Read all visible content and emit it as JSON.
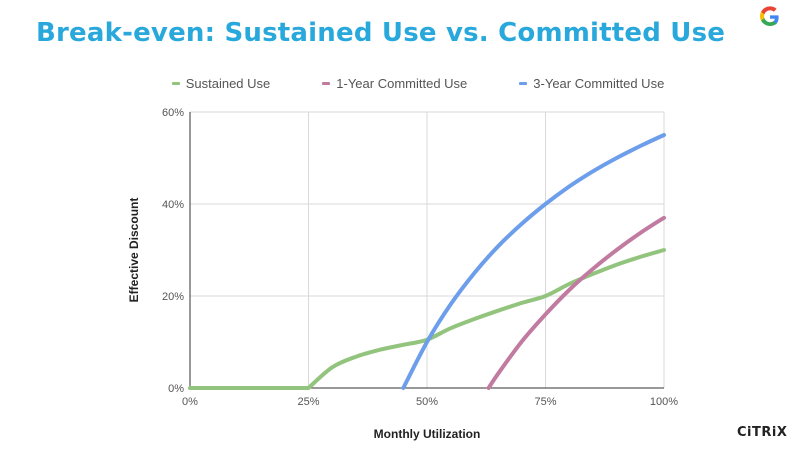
{
  "page": {
    "title": "Break-even: Sustained Use vs. Committed Use",
    "brand_logo": "google-g-logo",
    "company_logo": "CiTRiX"
  },
  "colors": {
    "title": "#29a8dc",
    "sustained": "#93c47d",
    "one_year": "#c27ba0",
    "three_year": "#6d9eeb",
    "grid": "#d9d9d9"
  },
  "chart_data": {
    "type": "line",
    "title": "",
    "xlabel": "Monthly Utilization",
    "ylabel": "Effective Discount",
    "xlim": [
      0,
      100
    ],
    "ylim": [
      0,
      60
    ],
    "x_ticks": [
      "0%",
      "25%",
      "50%",
      "75%",
      "100%"
    ],
    "y_ticks": [
      "0%",
      "20%",
      "40%",
      "60%"
    ],
    "grid": true,
    "legend_position": "top",
    "series": [
      {
        "name": "Sustained Use",
        "color": "#93c47d",
        "x": [
          0,
          25,
          30,
          35,
          40,
          45,
          50,
          55,
          60,
          65,
          70,
          75,
          80,
          85,
          90,
          95,
          100
        ],
        "y": [
          0,
          0,
          4.5,
          6.8,
          8.3,
          9.4,
          10.5,
          13,
          15,
          16.8,
          18.5,
          20,
          22.6,
          24.8,
          26.8,
          28.5,
          30
        ]
      },
      {
        "name": "1-Year Committed Use",
        "color": "#c27ba0",
        "x": [
          63,
          65,
          70,
          75,
          80,
          85,
          90,
          95,
          100
        ],
        "y": [
          0,
          3.1,
          10.1,
          16,
          21.3,
          25.9,
          30,
          33.7,
          37
        ]
      },
      {
        "name": "3-Year Committed Use",
        "color": "#6d9eeb",
        "x": [
          45,
          50,
          55,
          60,
          65,
          70,
          75,
          80,
          85,
          90,
          95,
          100
        ],
        "y": [
          0,
          10,
          18.2,
          25,
          30.8,
          35.7,
          40,
          43.8,
          47.1,
          50,
          52.6,
          55
        ]
      }
    ]
  }
}
